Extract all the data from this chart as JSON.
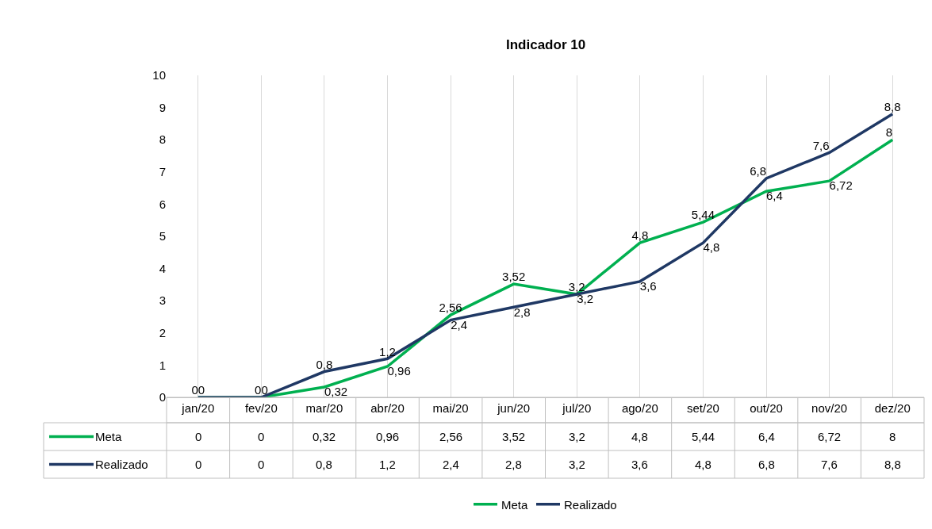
{
  "chart_data": {
    "type": "line",
    "title": "Indicador 10",
    "categories": [
      "jan/20",
      "fev/20",
      "mar/20",
      "abr/20",
      "mai/20",
      "jun/20",
      "jul/20",
      "ago/20",
      "set/20",
      "out/20",
      "nov/20",
      "dez/20"
    ],
    "series": [
      {
        "name": "Meta",
        "color": "#00b050",
        "values": [
          0,
          0,
          0.32,
          0.96,
          2.56,
          3.52,
          3.2,
          4.8,
          5.44,
          6.4,
          6.72,
          8
        ],
        "value_labels": [
          "0",
          "0",
          "0,32",
          "0,96",
          "2,56",
          "3,52",
          "3,2",
          "4,8",
          "5,44",
          "6,4",
          "6,72",
          "8"
        ]
      },
      {
        "name": "Realizado",
        "color": "#1f3864",
        "values": [
          0,
          0,
          0.8,
          1.2,
          2.4,
          2.8,
          3.2,
          3.6,
          4.8,
          6.8,
          7.6,
          8.8
        ],
        "value_labels": [
          "0",
          "0",
          "0,8",
          "1,2",
          "2,4",
          "2,8",
          "3,2",
          "3,6",
          "4,8",
          "6,8",
          "7,6",
          "8,8"
        ]
      }
    ],
    "ylim": [
      0,
      10
    ],
    "yticks": [
      0,
      1,
      2,
      3,
      4,
      5,
      6,
      7,
      8,
      9,
      10
    ],
    "grid": "x",
    "legend": "bottom",
    "marker": "none",
    "line_style": "solid"
  }
}
